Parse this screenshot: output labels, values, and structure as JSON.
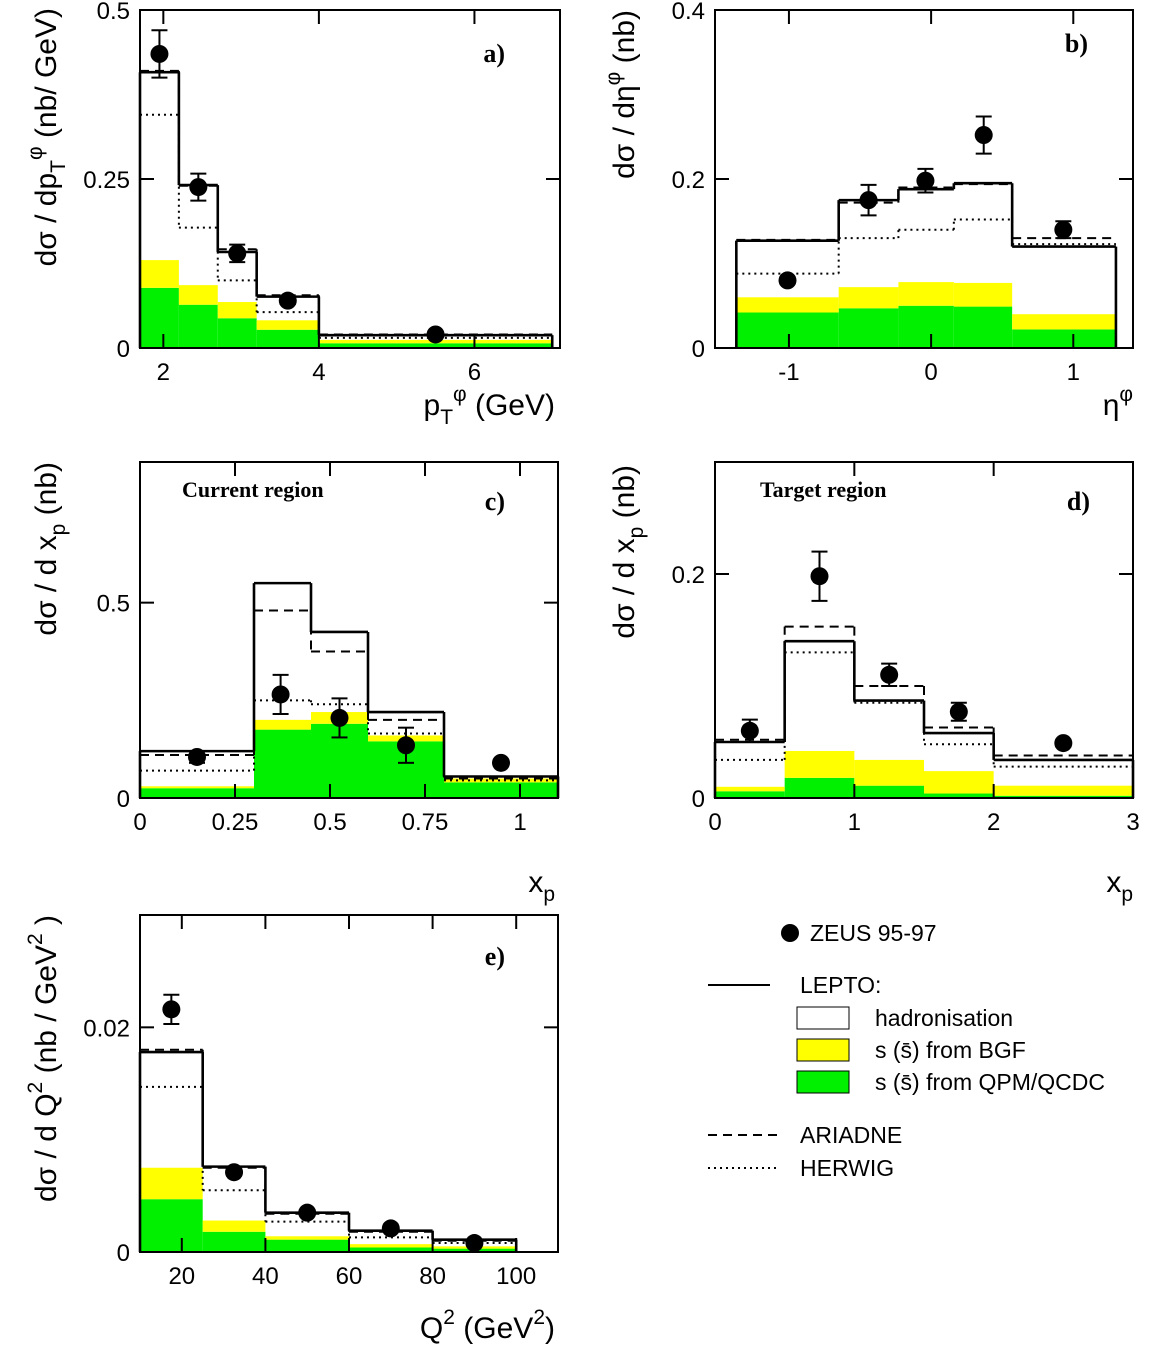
{
  "chart_data": [
    {
      "type": "histogram",
      "label": "a)",
      "xlabel": [
        {
          "text": "p"
        },
        {
          "text": "T",
          "pos": "sub"
        },
        {
          "text": "φ",
          "pos": "sup"
        },
        {
          "text": " (GeV)"
        }
      ],
      "ylabel": [
        {
          "text": "dσ / dp"
        },
        {
          "text": "T",
          "pos": "sub"
        },
        {
          "text": "φ",
          "pos": "sup"
        },
        {
          "text": " (nb/ GeV)"
        }
      ],
      "xlim": [
        1.7,
        7.1
      ],
      "xticks": [
        2,
        4,
        6
      ],
      "ylim": [
        0,
        0.5
      ],
      "yticks": [
        0,
        0.25,
        0.5
      ],
      "bins": [
        1.7,
        2.2,
        2.7,
        3.2,
        4.0,
        7.0
      ],
      "series": [
        {
          "style": "band",
          "color": "#00f000",
          "values": [
            0.089,
            0.064,
            0.044,
            0.027,
            0.007
          ]
        },
        {
          "style": "band",
          "color": "#ffff00",
          "values": [
            0.041,
            0.029,
            0.024,
            0.014,
            0.005
          ]
        },
        {
          "style": "dotted",
          "color": "#000000",
          "values": [
            0.345,
            0.178,
            0.1,
            0.053,
            0.015
          ]
        },
        {
          "style": "dashed",
          "color": "#000000",
          "values": [
            0.41,
            0.24,
            0.146,
            0.078,
            0.02
          ]
        },
        {
          "style": "solid",
          "color": "#000000",
          "values": [
            0.408,
            0.241,
            0.142,
            0.076,
            0.019
          ]
        },
        {
          "style": "points",
          "color": "#000000",
          "x": [
            1.95,
            2.45,
            2.95,
            3.6,
            5.5
          ],
          "values": [
            0.435,
            0.238,
            0.14,
            0.07,
            0.02
          ],
          "errors": [
            0.035,
            0.02,
            0.013,
            0.005,
            0.002
          ]
        }
      ]
    },
    {
      "type": "histogram",
      "label": "b)",
      "xlabel": [
        {
          "text": "η"
        },
        {
          "text": "φ",
          "pos": "sup"
        }
      ],
      "ylabel": [
        {
          "text": "dσ / dη"
        },
        {
          "text": "φ",
          "pos": "sup"
        },
        {
          "text": " (nb)"
        }
      ],
      "xlim": [
        -1.52,
        1.42
      ],
      "xticks": [
        -1,
        0,
        1
      ],
      "ylim": [
        0,
        0.4
      ],
      "yticks": [
        0,
        0.2,
        0.4
      ],
      "bins": [
        -1.37,
        -0.65,
        -0.23,
        0.16,
        0.57,
        1.3
      ],
      "series": [
        {
          "style": "band",
          "color": "#00f000",
          "values": [
            0.042,
            0.047,
            0.05,
            0.049,
            0.022
          ]
        },
        {
          "style": "band",
          "color": "#ffff00",
          "values": [
            0.018,
            0.025,
            0.028,
            0.028,
            0.018
          ]
        },
        {
          "style": "dotted",
          "color": "#000000",
          "values": [
            0.088,
            0.13,
            0.14,
            0.152,
            0.123
          ]
        },
        {
          "style": "dashed",
          "color": "#000000",
          "values": [
            0.128,
            0.172,
            0.19,
            0.194,
            0.13
          ]
        },
        {
          "style": "solid",
          "color": "#000000",
          "values": [
            0.127,
            0.175,
            0.188,
            0.195,
            0.12
          ]
        },
        {
          "style": "points",
          "color": "#000000",
          "x": [
            -1.01,
            -0.44,
            -0.04,
            0.37,
            0.93
          ],
          "values": [
            0.08,
            0.175,
            0.198,
            0.252,
            0.14
          ],
          "errors": [
            0.004,
            0.018,
            0.014,
            0.022,
            0.01
          ]
        }
      ]
    },
    {
      "type": "histogram",
      "label": "c)",
      "annotation": "Current region",
      "xlabel": [
        {
          "text": "x"
        },
        {
          "text": "p",
          "pos": "sub"
        }
      ],
      "ylabel": [
        {
          "text": "dσ / d x"
        },
        {
          "text": "p",
          "pos": "sub"
        },
        {
          "text": " (nb)"
        }
      ],
      "xlim": [
        0,
        1.1
      ],
      "xticks": [
        0,
        0.25,
        0.5,
        0.75,
        1
      ],
      "ylim": [
        0,
        0.86
      ],
      "yticks": [
        0,
        0.5
      ],
      "bins": [
        0,
        0.3,
        0.45,
        0.6,
        0.8,
        1.1
      ],
      "series": [
        {
          "style": "band",
          "color": "#00f000",
          "values": [
            0.025,
            0.175,
            0.19,
            0.145,
            0.04
          ]
        },
        {
          "style": "band",
          "color": "#ffff00",
          "values": [
            0.005,
            0.025,
            0.03,
            0.015,
            0.01
          ]
        },
        {
          "style": "dotted",
          "color": "#000000",
          "values": [
            0.07,
            0.25,
            0.24,
            0.165,
            0.045
          ]
        },
        {
          "style": "dashed",
          "color": "#000000",
          "values": [
            0.11,
            0.48,
            0.375,
            0.2,
            0.05
          ]
        },
        {
          "style": "solid",
          "color": "#000000",
          "values": [
            0.12,
            0.55,
            0.425,
            0.22,
            0.055
          ]
        },
        {
          "style": "points",
          "color": "#000000",
          "x": [
            0.15,
            0.37,
            0.525,
            0.7,
            0.95
          ],
          "values": [
            0.105,
            0.265,
            0.205,
            0.135,
            0.09
          ],
          "errors": [
            0.015,
            0.05,
            0.05,
            0.045,
            0.006
          ]
        }
      ]
    },
    {
      "type": "histogram",
      "label": "d)",
      "annotation": "Target region",
      "xlabel": [
        {
          "text": "x"
        },
        {
          "text": "p",
          "pos": "sub"
        }
      ],
      "ylabel": [
        {
          "text": "dσ / d x"
        },
        {
          "text": "p",
          "pos": "sub"
        },
        {
          "text": " (nb)"
        }
      ],
      "xlim": [
        0,
        3
      ],
      "xticks": [
        0,
        1,
        2,
        3
      ],
      "ylim": [
        0,
        0.3
      ],
      "yticks": [
        0,
        0.2
      ],
      "bins": [
        0,
        0.5,
        1,
        1.5,
        2,
        3
      ],
      "series": [
        {
          "style": "band",
          "color": "#00f000",
          "values": [
            0.006,
            0.018,
            0.011,
            0.004,
            0.002
          ]
        },
        {
          "style": "band",
          "color": "#ffff00",
          "values": [
            0.004,
            0.024,
            0.023,
            0.02,
            0.009
          ]
        },
        {
          "style": "dotted",
          "color": "#000000",
          "values": [
            0.034,
            0.13,
            0.085,
            0.048,
            0.028
          ]
        },
        {
          "style": "dashed",
          "color": "#000000",
          "values": [
            0.052,
            0.153,
            0.1,
            0.063,
            0.038
          ]
        },
        {
          "style": "solid",
          "color": "#000000",
          "values": [
            0.05,
            0.14,
            0.087,
            0.058,
            0.034
          ]
        },
        {
          "style": "points",
          "color": "#000000",
          "x": [
            0.25,
            0.75,
            1.25,
            1.75,
            2.5
          ],
          "values": [
            0.06,
            0.198,
            0.11,
            0.077,
            0.049
          ],
          "errors": [
            0.01,
            0.022,
            0.01,
            0.008,
            0.003
          ]
        }
      ]
    },
    {
      "type": "histogram",
      "label": "e)",
      "xlabel": [
        {
          "text": "Q"
        },
        {
          "text": "2",
          "pos": "sup"
        },
        {
          "text": " (GeV"
        },
        {
          "text": "2",
          "pos": "sup"
        },
        {
          "text": ")"
        }
      ],
      "ylabel": [
        {
          "text": "dσ / d Q"
        },
        {
          "text": "2",
          "pos": "sup"
        },
        {
          "text": " (nb / GeV"
        },
        {
          "text": "2",
          "pos": "sup"
        },
        {
          "text": " )"
        }
      ],
      "xlim": [
        10,
        110
      ],
      "xticks": [
        20,
        40,
        60,
        80,
        100
      ],
      "ylim": [
        0,
        0.03
      ],
      "yticks": [
        0,
        0.02
      ],
      "bins": [
        10,
        25,
        40,
        60,
        80,
        100
      ],
      "series": [
        {
          "style": "band",
          "color": "#00f000",
          "values": [
            0.0047,
            0.0018,
            0.0011,
            0.0004,
            0.0003
          ]
        },
        {
          "style": "band",
          "color": "#ffff00",
          "values": [
            0.0028,
            0.001,
            0.0003,
            0.0003,
            0.0002
          ]
        },
        {
          "style": "dotted",
          "color": "#000000",
          "values": [
            0.0147,
            0.0055,
            0.0027,
            0.0013,
            0.0008
          ]
        },
        {
          "style": "dashed",
          "color": "#000000",
          "values": [
            0.018,
            0.0075,
            0.0034,
            0.0018,
            0.001
          ]
        },
        {
          "style": "solid",
          "color": "#000000",
          "values": [
            0.0178,
            0.0076,
            0.0035,
            0.0019,
            0.0011
          ]
        },
        {
          "style": "points",
          "color": "#000000",
          "x": [
            17.5,
            32.5,
            50,
            70,
            90
          ],
          "values": [
            0.0216,
            0.0071,
            0.0035,
            0.0021,
            0.0008
          ],
          "errors": [
            0.0013,
            0.0003,
            0.0002,
            0.0001,
            0.0001
          ]
        }
      ]
    }
  ],
  "legend": {
    "entries": [
      {
        "label": "ZEUS 95-97",
        "style": "points"
      },
      {
        "label": "LEPTO:",
        "style": "solid"
      },
      {
        "label": "hadronisation",
        "style": "box",
        "color": "#ffffff"
      },
      {
        "label": "s (s̄) from BGF",
        "style": "box",
        "color": "#ffff00"
      },
      {
        "label": "s (s̄) from QPM/QCDC",
        "style": "box",
        "color": "#00f000"
      },
      {
        "label": "ARIADNE",
        "style": "dashed"
      },
      {
        "label": "HERWIG",
        "style": "dotted"
      }
    ]
  }
}
